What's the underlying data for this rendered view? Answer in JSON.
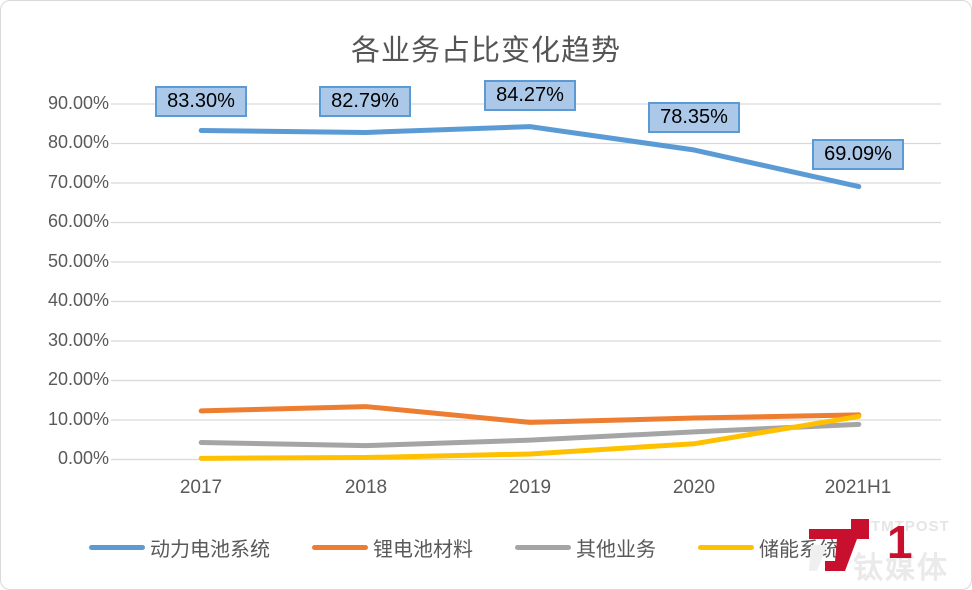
{
  "chart_data": {
    "type": "line",
    "title": "各业务占比变化趋势",
    "categories": [
      "2017",
      "2018",
      "2019",
      "2020",
      "2021H1"
    ],
    "series": [
      {
        "name": "动力电池系统",
        "color": "#5B9BD5",
        "values": [
          83.3,
          82.79,
          84.27,
          78.35,
          69.09
        ],
        "labels": [
          "83.30%",
          "82.79%",
          "84.27%",
          "78.35%",
          "69.09%"
        ]
      },
      {
        "name": "锂电池材料",
        "color": "#ED7D31",
        "values": [
          12.3,
          13.4,
          9.4,
          10.5,
          11.3
        ]
      },
      {
        "name": "其他业务",
        "color": "#A5A5A5",
        "values": [
          4.3,
          3.5,
          4.9,
          7.0,
          8.9
        ]
      },
      {
        "name": "储能系统",
        "color": "#FFC000",
        "values": [
          0.3,
          0.5,
          1.4,
          4.0,
          10.9
        ]
      }
    ],
    "y_axis": {
      "min": 0,
      "max": 90,
      "step": 10,
      "tick_labels": [
        "0.00%",
        "10.00%",
        "20.00%",
        "30.00%",
        "40.00%",
        "50.00%",
        "60.00%",
        "70.00%",
        "80.00%",
        "90.00%"
      ]
    },
    "grid": true,
    "legend_position": "bottom",
    "label_box": {
      "fill": "#ABC8E8",
      "border": "#5B9BD5"
    },
    "gridline_color": "#D9D9D9"
  },
  "watermark": {
    "brand": "TMTPOST",
    "brand_cn": "钛媒体",
    "mark": "1",
    "color": "#C8102E"
  }
}
